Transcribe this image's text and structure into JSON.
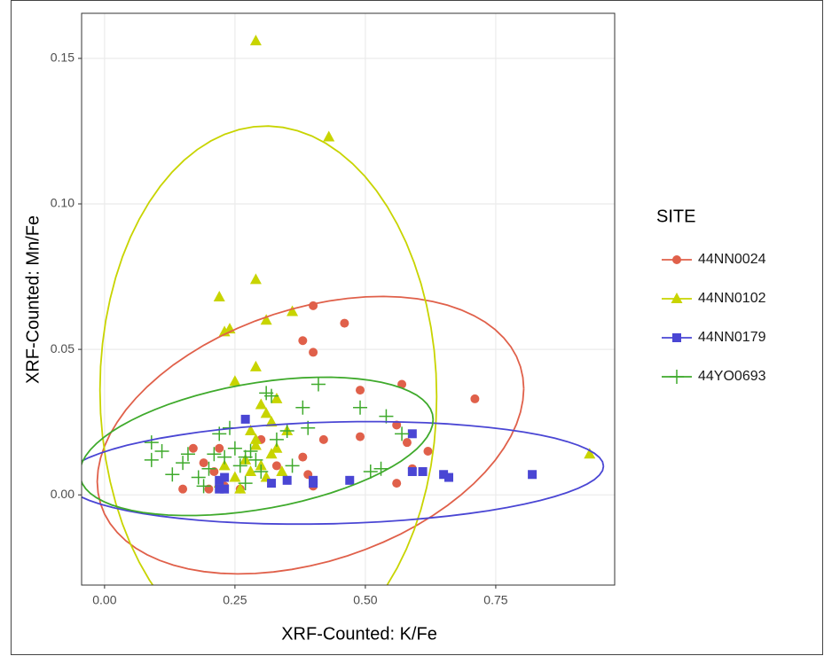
{
  "chart_data": {
    "type": "scatter",
    "xlabel": "XRF-Counted: K/Fe",
    "ylabel": "XRF-Counted: Mn/Fe",
    "legend_title": "SITE",
    "xlim": [
      -0.044,
      0.978
    ],
    "ylim": [
      -0.031,
      0.1655
    ],
    "xticks": [
      {
        "value": 0,
        "label": "0.00"
      },
      {
        "value": 0.25,
        "label": "0.25"
      },
      {
        "value": 0.5,
        "label": "0.50"
      },
      {
        "value": 0.75,
        "label": "0.75"
      }
    ],
    "yticks": [
      {
        "value": 0,
        "label": "0.00"
      },
      {
        "value": 0.05,
        "label": "0.05"
      },
      {
        "value": 0.1,
        "label": "0.10"
      },
      {
        "value": 0.15,
        "label": "0.15"
      }
    ],
    "grid": true,
    "legend": "right",
    "ellipses": true,
    "series": [
      {
        "name": "44NN0024",
        "color": "#e0604a",
        "marker": "circle",
        "x": [
          0.15,
          0.17,
          0.19,
          0.2,
          0.21,
          0.22,
          0.23,
          0.26,
          0.3,
          0.33,
          0.38,
          0.38,
          0.39,
          0.4,
          0.4,
          0.4,
          0.42,
          0.46,
          0.49,
          0.49,
          0.56,
          0.56,
          0.57,
          0.58,
          0.59,
          0.62,
          0.71
        ],
        "y": [
          0.002,
          0.016,
          0.011,
          0.002,
          0.008,
          0.016,
          0.003,
          0.002,
          0.019,
          0.01,
          0.053,
          0.013,
          0.007,
          0.065,
          0.049,
          0.003,
          0.019,
          0.059,
          0.036,
          0.02,
          0.024,
          0.004,
          0.038,
          0.018,
          0.009,
          0.015,
          0.033
        ]
      },
      {
        "name": "44NN0102",
        "color": "#c8d400",
        "marker": "triangle",
        "x": [
          0.29,
          0.43,
          0.22,
          0.29,
          0.23,
          0.24,
          0.36,
          0.31,
          0.29,
          0.25,
          0.3,
          0.31,
          0.28,
          0.32,
          0.35,
          0.29,
          0.33,
          0.27,
          0.3,
          0.32,
          0.28,
          0.23,
          0.25,
          0.22,
          0.26,
          0.93,
          0.34,
          0.31,
          0.29,
          0.33
        ],
        "y": [
          0.156,
          0.123,
          0.068,
          0.074,
          0.056,
          0.057,
          0.063,
          0.06,
          0.044,
          0.039,
          0.031,
          0.028,
          0.022,
          0.025,
          0.022,
          0.017,
          0.016,
          0.012,
          0.01,
          0.014,
          0.008,
          0.01,
          0.006,
          0.004,
          0.002,
          0.014,
          0.008,
          0.006,
          0.019,
          0.033
        ]
      },
      {
        "name": "44NN0179",
        "color": "#4a46d4",
        "marker": "square",
        "x": [
          0.22,
          0.23,
          0.23,
          0.27,
          0.32,
          0.35,
          0.4,
          0.4,
          0.47,
          0.59,
          0.59,
          0.61,
          0.65,
          0.66,
          0.82,
          0.22
        ],
        "y": [
          0.005,
          0.002,
          0.006,
          0.026,
          0.004,
          0.005,
          0.004,
          0.005,
          0.005,
          0.021,
          0.008,
          0.008,
          0.007,
          0.006,
          0.007,
          0.002
        ]
      },
      {
        "name": "44YO0693",
        "color": "#3faa2c",
        "marker": "plus",
        "x": [
          0.09,
          0.09,
          0.11,
          0.13,
          0.15,
          0.16,
          0.18,
          0.19,
          0.2,
          0.21,
          0.22,
          0.24,
          0.25,
          0.26,
          0.27,
          0.28,
          0.29,
          0.3,
          0.31,
          0.32,
          0.33,
          0.35,
          0.36,
          0.38,
          0.39,
          0.41,
          0.49,
          0.51,
          0.53,
          0.54,
          0.57,
          0.27,
          0.23
        ],
        "y": [
          0.018,
          0.012,
          0.015,
          0.007,
          0.011,
          0.014,
          0.006,
          0.003,
          0.009,
          0.014,
          0.021,
          0.023,
          0.016,
          0.01,
          0.013,
          0.015,
          0.012,
          0.008,
          0.035,
          0.034,
          0.019,
          0.022,
          0.01,
          0.03,
          0.023,
          0.038,
          0.03,
          0.008,
          0.009,
          0.027,
          0.021,
          0.004,
          0.013
        ]
      }
    ]
  }
}
